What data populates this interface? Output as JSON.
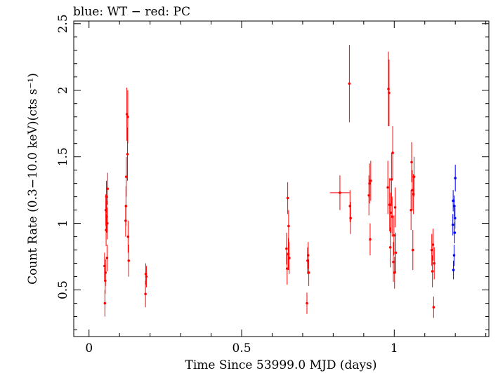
{
  "chart_data": {
    "type": "scatter",
    "title": "blue: WT − red: PC",
    "xlabel": "Time Since 53999.0 MJD (days)",
    "ylabel": "Count Rate (0.3−10.0 keV)(cts s⁻¹)",
    "xlim": [
      -0.05,
      1.31
    ],
    "ylim": [
      0.15,
      2.52
    ],
    "x_ticks": [
      0,
      0.5,
      1
    ],
    "x_tick_labels": [
      "0",
      "0.5",
      "1"
    ],
    "y_ticks": [
      0.5,
      1,
      1.5,
      2,
      2.5
    ],
    "y_tick_labels": [
      "0.5",
      "1",
      "1.5",
      "2",
      "2.5"
    ],
    "grid": false,
    "series": [
      {
        "name": "PC",
        "color": "#ff0000",
        "points": [
          {
            "x": 0.051,
            "y": 0.68,
            "err": 0.1
          },
          {
            "x": 0.052,
            "y": 0.4,
            "err": 0.1
          },
          {
            "x": 0.053,
            "y": 0.57,
            "err": 0.1
          },
          {
            "x": 0.054,
            "y": 0.63,
            "err": 0.1
          },
          {
            "x": 0.055,
            "y": 1.1,
            "err": 0.12
          },
          {
            "x": 0.056,
            "y": 0.95,
            "err": 0.12
          },
          {
            "x": 0.057,
            "y": 1.2,
            "err": 0.12
          },
          {
            "x": 0.058,
            "y": 1.05,
            "err": 0.12
          },
          {
            "x": 0.059,
            "y": 0.74,
            "err": 0.1
          },
          {
            "x": 0.06,
            "y": 1.0,
            "err": 0.12
          },
          {
            "x": 0.061,
            "y": 1.26,
            "err": 0.12
          },
          {
            "x": 0.12,
            "y": 1.02,
            "err": 0.12
          },
          {
            "x": 0.121,
            "y": 1.13,
            "err": 0.15
          },
          {
            "x": 0.122,
            "y": 1.35,
            "err": 0.15
          },
          {
            "x": 0.124,
            "y": 1.82,
            "err": 0.2
          },
          {
            "x": 0.126,
            "y": 1.52,
            "err": 0.2
          },
          {
            "x": 0.127,
            "y": 1.8,
            "err": 0.2
          },
          {
            "x": 0.128,
            "y": 0.9,
            "err": 0.12
          },
          {
            "x": 0.13,
            "y": 0.72,
            "err": 0.12
          },
          {
            "x": 0.185,
            "y": 0.47,
            "err": 0.1
          },
          {
            "x": 0.186,
            "y": 0.62,
            "err": 0.08
          },
          {
            "x": 0.188,
            "y": 0.6,
            "err": 0.08
          },
          {
            "x": 0.647,
            "y": 0.81,
            "err": 0.12
          },
          {
            "x": 0.649,
            "y": 0.66,
            "err": 0.12
          },
          {
            "x": 0.651,
            "y": 1.19,
            "err": 0.12
          },
          {
            "x": 0.653,
            "y": 0.77,
            "err": 0.12
          },
          {
            "x": 0.654,
            "y": 0.98,
            "err": 0.12
          },
          {
            "x": 0.656,
            "y": 0.74,
            "err": 0.12
          },
          {
            "x": 0.714,
            "y": 0.4,
            "err": 0.08
          },
          {
            "x": 0.716,
            "y": 0.72,
            "err": 0.1
          },
          {
            "x": 0.718,
            "y": 0.76,
            "err": 0.1
          },
          {
            "x": 0.72,
            "y": 0.63,
            "err": 0.1
          },
          {
            "x": 0.822,
            "y": 1.23,
            "err": 0.13,
            "xerr": 0.033
          },
          {
            "x": 0.853,
            "y": 2.05,
            "err": 0.29
          },
          {
            "x": 0.855,
            "y": 1.13,
            "err": 0.12
          },
          {
            "x": 0.857,
            "y": 1.04,
            "err": 0.12
          },
          {
            "x": 0.917,
            "y": 1.21,
            "err": 0.15
          },
          {
            "x": 0.919,
            "y": 1.3,
            "err": 0.15
          },
          {
            "x": 0.921,
            "y": 0.88,
            "err": 0.12
          },
          {
            "x": 0.923,
            "y": 1.32,
            "err": 0.15
          },
          {
            "x": 0.979,
            "y": 1.27,
            "err": 0.2
          },
          {
            "x": 0.981,
            "y": 2.01,
            "err": 0.28
          },
          {
            "x": 0.983,
            "y": 1.98,
            "err": 0.25
          },
          {
            "x": 0.985,
            "y": 1.14,
            "err": 0.2
          },
          {
            "x": 0.987,
            "y": 0.82,
            "err": 0.15
          },
          {
            "x": 0.989,
            "y": 1.08,
            "err": 0.15
          },
          {
            "x": 0.991,
            "y": 1.33,
            "err": 0.2
          },
          {
            "x": 0.993,
            "y": 1.05,
            "err": 0.15
          },
          {
            "x": 0.995,
            "y": 1.53,
            "err": 0.2
          },
          {
            "x": 0.997,
            "y": 0.71,
            "err": 0.15
          },
          {
            "x": 0.999,
            "y": 0.91,
            "err": 0.15
          },
          {
            "x": 1.001,
            "y": 0.63,
            "err": 0.12
          },
          {
            "x": 1.003,
            "y": 1.12,
            "err": 0.15
          },
          {
            "x": 1.005,
            "y": 0.78,
            "err": 0.15
          },
          {
            "x": 1.055,
            "y": 1.1,
            "err": 0.15
          },
          {
            "x": 1.057,
            "y": 1.46,
            "err": 0.15
          },
          {
            "x": 1.059,
            "y": 1.25,
            "err": 0.15
          },
          {
            "x": 1.061,
            "y": 0.8,
            "err": 0.15
          },
          {
            "x": 1.063,
            "y": 1.22,
            "err": 0.15
          },
          {
            "x": 1.065,
            "y": 1.35,
            "err": 0.15
          },
          {
            "x": 1.123,
            "y": 0.8,
            "err": 0.12
          },
          {
            "x": 1.125,
            "y": 0.64,
            "err": 0.12
          },
          {
            "x": 1.127,
            "y": 0.84,
            "err": 0.12
          },
          {
            "x": 1.129,
            "y": 0.37,
            "err": 0.08
          },
          {
            "x": 1.131,
            "y": 0.7,
            "err": 0.12
          }
        ]
      },
      {
        "name": "WT",
        "color": "#0000ff",
        "points": [
          {
            "x": 1.192,
            "y": 0.99,
            "err": 0.08
          },
          {
            "x": 1.193,
            "y": 1.17,
            "err": 0.08
          },
          {
            "x": 1.194,
            "y": 0.65,
            "err": 0.07
          },
          {
            "x": 1.196,
            "y": 0.76,
            "err": 0.08
          },
          {
            "x": 1.197,
            "y": 1.13,
            "err": 0.08
          },
          {
            "x": 1.198,
            "y": 0.93,
            "err": 0.08
          },
          {
            "x": 1.199,
            "y": 1.04,
            "err": 0.08
          },
          {
            "x": 1.2,
            "y": 1.34,
            "err": 0.1
          }
        ]
      }
    ]
  }
}
